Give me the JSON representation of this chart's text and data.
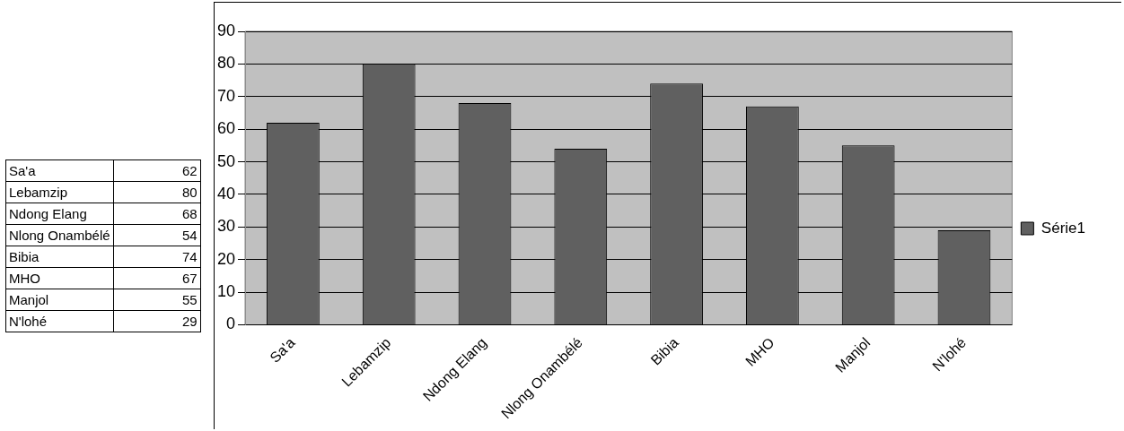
{
  "chart_data": [
    {
      "type": "other",
      "categories": [
        "Sa'a",
        "Lebamzip",
        "Ndong Elang",
        "Nlong Onambélé",
        "Bibia",
        "MHO",
        "Manjol",
        "N'lohé"
      ],
      "values": [
        62,
        80,
        68,
        54,
        74,
        67,
        55,
        29
      ],
      "data_labels": true
    },
    {
      "type": "bar",
      "categories": [
        "Sa'a",
        "Lebamzip",
        "Ndong Elang",
        "Nlong Onambélé",
        "Bibia",
        "MHO",
        "Manjol",
        "N'lohé"
      ],
      "series": [
        {
          "name": "Série1",
          "color": "#606060",
          "values": [
            62,
            80,
            68,
            54,
            74,
            67,
            55,
            29
          ]
        }
      ],
      "ylim": [
        0,
        90
      ],
      "yticks": [
        0,
        10,
        20,
        30,
        40,
        50,
        60,
        70,
        80,
        90
      ],
      "grid": "y",
      "legend": "right"
    }
  ]
}
